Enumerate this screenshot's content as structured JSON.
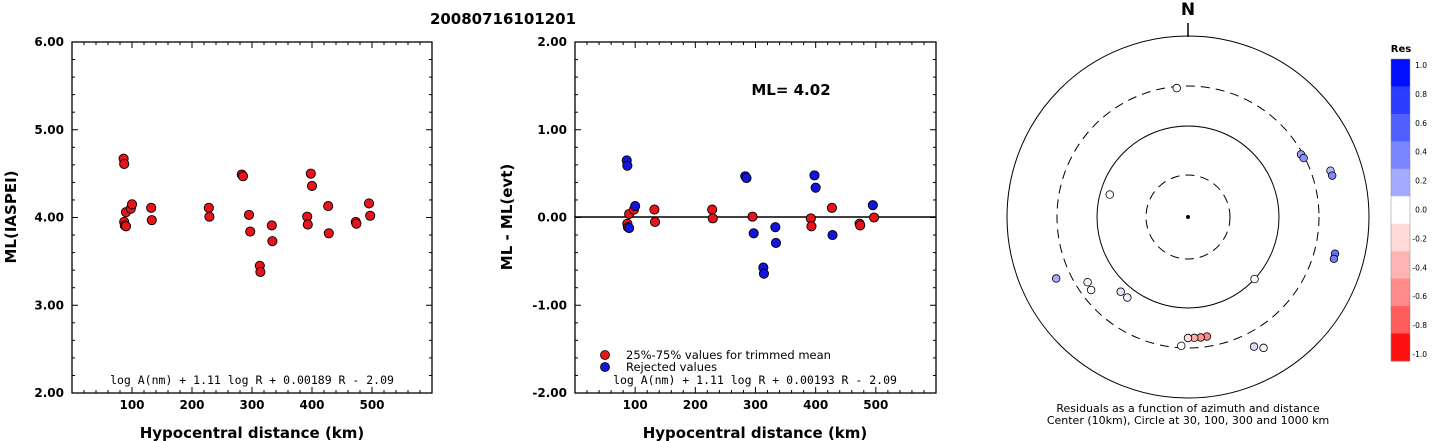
{
  "title": "20080716101201",
  "chart_data": [
    {
      "type": "scatter",
      "xlabel": "Hypocentral distance (km)",
      "ylabel": "ML(IASPEI)",
      "xlim": [
        0,
        600
      ],
      "ylim": [
        2.0,
        6.0
      ],
      "xticks": [
        "100",
        "200",
        "300",
        "400",
        "500"
      ],
      "yticks": [
        "2.00",
        "3.00",
        "4.00",
        "5.00",
        "6.00"
      ],
      "formula": "log A(nm) + 1.11 log R + 0.00189 R - 2.09",
      "series": [
        {
          "color": "#e8141c",
          "x": [
            86,
            87,
            87,
            88,
            90,
            90,
            98,
            100,
            132,
            133,
            228,
            229,
            283,
            285,
            295,
            297,
            313,
            314,
            333,
            334,
            392,
            393,
            398,
            400,
            427,
            428,
            473,
            474,
            495,
            497
          ],
          "y": [
            4.67,
            4.61,
            3.95,
            3.91,
            4.06,
            3.9,
            4.1,
            4.15,
            4.11,
            3.97,
            4.11,
            4.01,
            4.49,
            4.47,
            4.03,
            3.84,
            3.45,
            3.38,
            3.91,
            3.73,
            4.01,
            3.92,
            4.5,
            4.36,
            4.13,
            3.82,
            3.95,
            3.93,
            4.16,
            4.02
          ]
        }
      ]
    },
    {
      "type": "scatter",
      "xlabel": "Hypocentral distance (km)",
      "ylabel": "ML - ML(evt)",
      "xlim": [
        0,
        600
      ],
      "ylim": [
        -2.0,
        2.0
      ],
      "xticks": [
        "100",
        "200",
        "300",
        "400",
        "500"
      ],
      "yticks": [
        "-2.00",
        "-1.00",
        "0.00",
        "1.00",
        "2.00"
      ],
      "annotation": "ML= 4.02",
      "formula": "log A(nm) + 1.11 log R + 0.00193 R - 2.09",
      "zero_line": true,
      "series": [
        {
          "name": "25%-75% values for trimmed mean",
          "color": "#e8141c",
          "x": [
            87,
            88,
            90,
            98,
            132,
            133,
            228,
            229,
            295,
            392,
            393,
            427,
            473,
            474,
            497
          ],
          "y": [
            -0.07,
            -0.11,
            0.04,
            0.09,
            0.09,
            -0.05,
            0.09,
            -0.01,
            0.01,
            -0.01,
            -0.1,
            0.11,
            -0.07,
            -0.09,
            0.0
          ]
        },
        {
          "name": "Rejected values",
          "color": "#1414dc",
          "x": [
            86,
            87,
            90,
            100,
            283,
            285,
            297,
            313,
            314,
            333,
            334,
            398,
            400,
            428,
            495
          ],
          "y": [
            0.65,
            0.59,
            -0.12,
            0.13,
            0.47,
            0.45,
            -0.18,
            -0.57,
            -0.64,
            -0.11,
            -0.29,
            0.48,
            0.34,
            -0.2,
            0.14
          ]
        }
      ]
    },
    {
      "type": "scatter",
      "subtype": "polar",
      "north_label": "N",
      "caption": "Residuals as a function of azimuth and distance",
      "caption2": "Center (10km), Circle at 30, 100, 300 and 1000 km",
      "rings_km": [
        30,
        100,
        300,
        1000
      ],
      "ring_styles": [
        "dashed",
        "solid",
        "dashed",
        "solid"
      ],
      "points": [
        {
          "az": 355,
          "km": 287,
          "res": 0.0
        },
        {
          "az": 61,
          "km": 285,
          "res": 0.4
        },
        {
          "az": 63,
          "km": 290,
          "res": 0.45
        },
        {
          "az": 72,
          "km": 472,
          "res": 0.3
        },
        {
          "az": 74,
          "km": 474,
          "res": 0.5
        },
        {
          "az": 104,
          "km": 492,
          "res": 0.6
        },
        {
          "az": 106,
          "km": 495,
          "res": 0.55
        },
        {
          "az": 133,
          "km": 100,
          "res": 0.0
        },
        {
          "az": 150,
          "km": 487,
          "res": 0.05
        },
        {
          "az": 153,
          "km": 425,
          "res": 0.15
        },
        {
          "az": 171,
          "km": 228,
          "res": -0.5
        },
        {
          "az": 174,
          "km": 229,
          "res": -0.45
        },
        {
          "az": 177,
          "km": 228,
          "res": -0.35
        },
        {
          "az": 180,
          "km": 228,
          "res": -0.15
        },
        {
          "az": 183,
          "km": 284,
          "res": 0.0
        },
        {
          "az": 217,
          "km": 131,
          "res": 0.05
        },
        {
          "az": 222,
          "km": 130,
          "res": 0.1
        },
        {
          "az": 233,
          "km": 230,
          "res": 0.0
        },
        {
          "az": 237,
          "km": 220,
          "res": 0.05
        },
        {
          "az": 245,
          "km": 425,
          "res": 0.35
        },
        {
          "az": 286,
          "km": 79,
          "res": 0.0
        }
      ],
      "colorbar": {
        "title": "Res",
        "ticks": [
          "1.0",
          "0.8",
          "0.6",
          "0.4",
          "0.2",
          "0.0",
          "-0.2",
          "-0.4",
          "-0.6",
          "-0.8",
          "-1.0"
        ],
        "colors": [
          "#0010ff",
          "#2a3cff",
          "#5060ff",
          "#7a86ff",
          "#a4acff",
          "#ffffff",
          "#ffd8d8",
          "#ffb4b4",
          "#ff8a8a",
          "#ff5c5c",
          "#ff1010"
        ]
      }
    }
  ]
}
